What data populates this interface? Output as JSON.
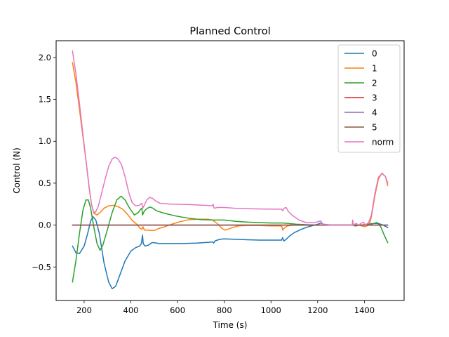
{
  "chart_data": {
    "type": "line",
    "title": "Planned Control",
    "xlabel": "Time (s)",
    "ylabel": "Control (N)",
    "xlim": [
      80,
      1570
    ],
    "ylim": [
      -0.9,
      2.2
    ],
    "xticks": [
      {
        "value": 200,
        "label": "200"
      },
      {
        "value": 400,
        "label": "400"
      },
      {
        "value": 600,
        "label": "600"
      },
      {
        "value": 800,
        "label": "800"
      },
      {
        "value": 1000,
        "label": "1000"
      },
      {
        "value": 1200,
        "label": "1200"
      },
      {
        "value": 1400,
        "label": "1400"
      }
    ],
    "yticks": [
      {
        "value": -0.5,
        "label": "−0.5"
      },
      {
        "value": 0.0,
        "label": "0.0"
      },
      {
        "value": 0.5,
        "label": "0.5"
      },
      {
        "value": 1.0,
        "label": "1.0"
      },
      {
        "value": 1.5,
        "label": "1.5"
      },
      {
        "value": 2.0,
        "label": "2.0"
      }
    ],
    "grid": false,
    "legend_position": "top-right",
    "series": [
      {
        "name": "0",
        "color": "#1f77b4",
        "points": [
          [
            150,
            -0.25
          ],
          [
            165,
            -0.33
          ],
          [
            180,
            -0.34
          ],
          [
            200,
            -0.25
          ],
          [
            215,
            -0.1
          ],
          [
            228,
            0.05
          ],
          [
            238,
            0.1
          ],
          [
            250,
            0.06
          ],
          [
            265,
            -0.1
          ],
          [
            285,
            -0.45
          ],
          [
            305,
            -0.68
          ],
          [
            320,
            -0.76
          ],
          [
            335,
            -0.73
          ],
          [
            355,
            -0.58
          ],
          [
            375,
            -0.43
          ],
          [
            400,
            -0.31
          ],
          [
            420,
            -0.27
          ],
          [
            438,
            -0.25
          ],
          [
            445,
            -0.22
          ],
          [
            450,
            -0.12
          ],
          [
            453,
            -0.22
          ],
          [
            460,
            -0.25
          ],
          [
            475,
            -0.24
          ],
          [
            490,
            -0.21
          ],
          [
            500,
            -0.21
          ],
          [
            520,
            -0.22
          ],
          [
            560,
            -0.22
          ],
          [
            620,
            -0.22
          ],
          [
            680,
            -0.215
          ],
          [
            740,
            -0.205
          ],
          [
            750,
            -0.2
          ],
          [
            755,
            -0.215
          ],
          [
            760,
            -0.19
          ],
          [
            780,
            -0.17
          ],
          [
            800,
            -0.165
          ],
          [
            850,
            -0.17
          ],
          [
            900,
            -0.175
          ],
          [
            950,
            -0.18
          ],
          [
            1000,
            -0.18
          ],
          [
            1045,
            -0.18
          ],
          [
            1050,
            -0.15
          ],
          [
            1055,
            -0.19
          ],
          [
            1065,
            -0.17
          ],
          [
            1080,
            -0.13
          ],
          [
            1100,
            -0.09
          ],
          [
            1130,
            -0.05
          ],
          [
            1160,
            -0.02
          ],
          [
            1200,
            0.01
          ],
          [
            1215,
            0.025
          ],
          [
            1225,
            0.01
          ],
          [
            1260,
            0.0
          ],
          [
            1300,
            0.0
          ],
          [
            1350,
            0.0
          ],
          [
            1360,
            -0.01
          ],
          [
            1375,
            0.0
          ],
          [
            1390,
            0.0
          ],
          [
            1410,
            0.01
          ],
          [
            1440,
            0.02
          ],
          [
            1460,
            0.02
          ],
          [
            1480,
            0.0
          ],
          [
            1500,
            -0.03
          ]
        ]
      },
      {
        "name": "1",
        "color": "#ff7f0e",
        "points": [
          [
            150,
            1.94
          ],
          [
            165,
            1.7
          ],
          [
            180,
            1.38
          ],
          [
            195,
            1.05
          ],
          [
            210,
            0.72
          ],
          [
            222,
            0.43
          ],
          [
            232,
            0.24
          ],
          [
            242,
            0.14
          ],
          [
            255,
            0.12
          ],
          [
            268,
            0.15
          ],
          [
            285,
            0.2
          ],
          [
            305,
            0.23
          ],
          [
            325,
            0.235
          ],
          [
            345,
            0.22
          ],
          [
            365,
            0.19
          ],
          [
            385,
            0.13
          ],
          [
            405,
            0.06
          ],
          [
            425,
            0.01
          ],
          [
            440,
            -0.04
          ],
          [
            448,
            -0.05
          ],
          [
            452,
            -0.02
          ],
          [
            458,
            -0.06
          ],
          [
            470,
            -0.06
          ],
          [
            490,
            -0.065
          ],
          [
            505,
            -0.06
          ],
          [
            520,
            -0.04
          ],
          [
            545,
            -0.02
          ],
          [
            575,
            0.01
          ],
          [
            610,
            0.04
          ],
          [
            650,
            0.065
          ],
          [
            690,
            0.07
          ],
          [
            730,
            0.07
          ],
          [
            750,
            0.06
          ],
          [
            757,
            0.045
          ],
          [
            770,
            0.02
          ],
          [
            790,
            -0.04
          ],
          [
            803,
            -0.06
          ],
          [
            815,
            -0.05
          ],
          [
            835,
            -0.03
          ],
          [
            860,
            -0.01
          ],
          [
            900,
            -0.005
          ],
          [
            950,
            -0.005
          ],
          [
            1000,
            -0.01
          ],
          [
            1040,
            -0.01
          ],
          [
            1047,
            -0.02
          ],
          [
            1050,
            -0.06
          ],
          [
            1055,
            -0.04
          ],
          [
            1070,
            -0.01
          ],
          [
            1100,
            0.0
          ],
          [
            1150,
            0.0
          ],
          [
            1200,
            0.0
          ],
          [
            1260,
            0.0
          ],
          [
            1300,
            0.0
          ],
          [
            1350,
            0.0
          ],
          [
            1358,
            -0.01
          ],
          [
            1370,
            0.0
          ],
          [
            1390,
            -0.01
          ],
          [
            1400,
            -0.02
          ],
          [
            1410,
            -0.01
          ],
          [
            1420,
            0.0
          ],
          [
            1430,
            0.1
          ],
          [
            1445,
            0.35
          ],
          [
            1460,
            0.55
          ],
          [
            1475,
            0.62
          ],
          [
            1490,
            0.58
          ],
          [
            1500,
            0.47
          ]
        ]
      },
      {
        "name": "2",
        "color": "#2ca02c",
        "points": [
          [
            150,
            -0.68
          ],
          [
            165,
            -0.42
          ],
          [
            180,
            -0.1
          ],
          [
            195,
            0.18
          ],
          [
            208,
            0.3
          ],
          [
            218,
            0.3
          ],
          [
            228,
            0.2
          ],
          [
            240,
            0.0
          ],
          [
            255,
            -0.22
          ],
          [
            268,
            -0.3
          ],
          [
            280,
            -0.24
          ],
          [
            300,
            -0.05
          ],
          [
            320,
            0.15
          ],
          [
            340,
            0.3
          ],
          [
            358,
            0.345
          ],
          [
            375,
            0.3
          ],
          [
            395,
            0.2
          ],
          [
            415,
            0.12
          ],
          [
            432,
            0.15
          ],
          [
            442,
            0.19
          ],
          [
            447,
            0.2
          ],
          [
            450,
            0.12
          ],
          [
            458,
            0.17
          ],
          [
            470,
            0.2
          ],
          [
            483,
            0.215
          ],
          [
            495,
            0.2
          ],
          [
            510,
            0.17
          ],
          [
            545,
            0.14
          ],
          [
            590,
            0.11
          ],
          [
            640,
            0.085
          ],
          [
            700,
            0.065
          ],
          [
            750,
            0.06
          ],
          [
            800,
            0.06
          ],
          [
            850,
            0.045
          ],
          [
            900,
            0.035
          ],
          [
            1000,
            0.025
          ],
          [
            1050,
            0.025
          ],
          [
            1070,
            0.02
          ],
          [
            1110,
            0.01
          ],
          [
            1150,
            0.005
          ],
          [
            1200,
            0.0
          ],
          [
            1260,
            0.0
          ],
          [
            1300,
            0.0
          ],
          [
            1350,
            0.0
          ],
          [
            1365,
            -0.01
          ],
          [
            1380,
            0.0
          ],
          [
            1400,
            0.0
          ],
          [
            1420,
            0.0
          ],
          [
            1440,
            0.02
          ],
          [
            1455,
            0.03
          ],
          [
            1470,
            -0.02
          ],
          [
            1485,
            -0.12
          ],
          [
            1500,
            -0.21
          ]
        ]
      },
      {
        "name": "3",
        "color": "#d62728",
        "points": [
          [
            150,
            0.0
          ],
          [
            1500,
            0.0
          ]
        ]
      },
      {
        "name": "4",
        "color": "#9467bd",
        "points": [
          [
            150,
            0.0
          ],
          [
            1500,
            0.0
          ]
        ]
      },
      {
        "name": "5",
        "color": "#8c564b",
        "points": [
          [
            150,
            0.0
          ],
          [
            1500,
            0.0
          ]
        ]
      },
      {
        "name": "norm",
        "color": "#e377c2",
        "points": [
          [
            150,
            2.08
          ],
          [
            165,
            1.8
          ],
          [
            180,
            1.45
          ],
          [
            195,
            1.08
          ],
          [
            210,
            0.72
          ],
          [
            222,
            0.44
          ],
          [
            232,
            0.24
          ],
          [
            240,
            0.16
          ],
          [
            248,
            0.15
          ],
          [
            260,
            0.22
          ],
          [
            275,
            0.38
          ],
          [
            290,
            0.55
          ],
          [
            305,
            0.7
          ],
          [
            320,
            0.79
          ],
          [
            332,
            0.81
          ],
          [
            345,
            0.79
          ],
          [
            360,
            0.72
          ],
          [
            375,
            0.58
          ],
          [
            390,
            0.4
          ],
          [
            405,
            0.27
          ],
          [
            420,
            0.23
          ],
          [
            435,
            0.235
          ],
          [
            447,
            0.26
          ],
          [
            451,
            0.2
          ],
          [
            458,
            0.24
          ],
          [
            468,
            0.3
          ],
          [
            480,
            0.33
          ],
          [
            492,
            0.32
          ],
          [
            505,
            0.29
          ],
          [
            525,
            0.26
          ],
          [
            570,
            0.25
          ],
          [
            650,
            0.245
          ],
          [
            720,
            0.235
          ],
          [
            750,
            0.23
          ],
          [
            752,
            0.25
          ],
          [
            757,
            0.2
          ],
          [
            770,
            0.21
          ],
          [
            800,
            0.21
          ],
          [
            850,
            0.2
          ],
          [
            900,
            0.195
          ],
          [
            1000,
            0.19
          ],
          [
            1045,
            0.19
          ],
          [
            1050,
            0.17
          ],
          [
            1055,
            0.2
          ],
          [
            1065,
            0.21
          ],
          [
            1075,
            0.16
          ],
          [
            1090,
            0.12
          ],
          [
            1120,
            0.06
          ],
          [
            1150,
            0.03
          ],
          [
            1185,
            0.03
          ],
          [
            1200,
            0.04
          ],
          [
            1213,
            0.05
          ],
          [
            1222,
            0.01
          ],
          [
            1250,
            0.0
          ],
          [
            1300,
            0.0
          ],
          [
            1348,
            0.0
          ],
          [
            1350,
            0.06
          ],
          [
            1353,
            0.0
          ],
          [
            1365,
            0.02
          ],
          [
            1375,
            0.0
          ],
          [
            1385,
            0.02
          ],
          [
            1395,
            0.035
          ],
          [
            1405,
            0.0
          ],
          [
            1418,
            0.03
          ],
          [
            1430,
            0.12
          ],
          [
            1445,
            0.38
          ],
          [
            1460,
            0.57
          ],
          [
            1475,
            0.615
          ],
          [
            1490,
            0.58
          ],
          [
            1500,
            0.5
          ]
        ]
      }
    ]
  }
}
